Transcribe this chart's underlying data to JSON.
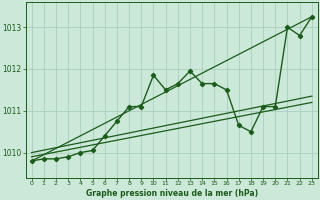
{
  "background_color": "#cce8d8",
  "grid_color": "#aacfbe",
  "line_color": "#1a5c1a",
  "xlabel": "Graphe pression niveau de la mer (hPa)",
  "ylim": [
    1009.4,
    1013.6
  ],
  "xlim": [
    -0.5,
    23.5
  ],
  "yticks": [
    1010,
    1011,
    1012,
    1013
  ],
  "xticks": [
    0,
    1,
    2,
    3,
    4,
    5,
    6,
    7,
    8,
    9,
    10,
    11,
    12,
    13,
    14,
    15,
    16,
    17,
    18,
    19,
    20,
    21,
    22,
    23
  ],
  "main_x": [
    0,
    1,
    2,
    3,
    4,
    5,
    6,
    7,
    8,
    9,
    10,
    11,
    12,
    13,
    14,
    15,
    16,
    17,
    18,
    19,
    20,
    21,
    22,
    23
  ],
  "main_y": [
    1009.8,
    1009.85,
    1009.85,
    1009.9,
    1010.0,
    1010.05,
    1010.4,
    1010.75,
    1011.1,
    1011.1,
    1011.85,
    1011.5,
    1011.65,
    1011.95,
    1011.65,
    1011.65,
    1011.5,
    1010.65,
    1010.5,
    1011.1,
    1011.1,
    1013.0,
    1012.8,
    1013.25
  ],
  "line1_x": [
    0,
    23
  ],
  "line1_y": [
    1009.8,
    1013.25
  ],
  "line2_x": [
    0,
    23
  ],
  "line2_y": [
    1009.9,
    1011.2
  ],
  "line3_x": [
    0,
    23
  ],
  "line3_y": [
    1010.0,
    1011.35
  ]
}
